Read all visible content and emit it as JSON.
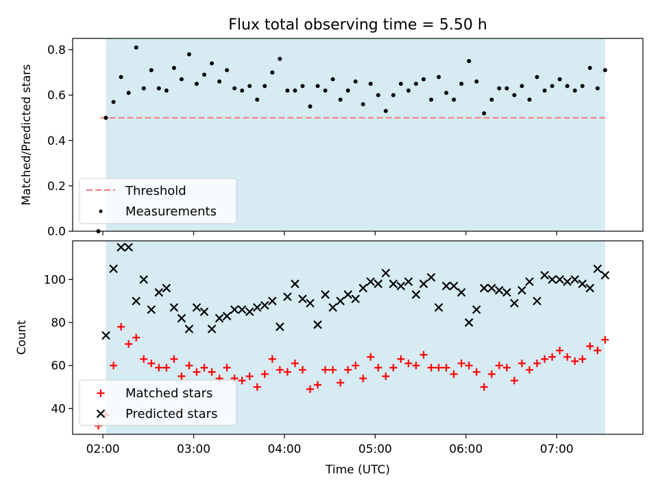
{
  "title": "Flux total observing time = 5.50 h",
  "colors": {
    "shade": "#add8e6",
    "threshold": "#f08080",
    "measurements": "#000000",
    "matched": "#ff0000",
    "predicted": "#000000"
  },
  "chart_data": [
    {
      "type": "scatter",
      "ylabel": "Matched/Predicted stars",
      "ylim": [
        0,
        0.85
      ],
      "yticks": [
        0.0,
        0.2,
        0.4,
        0.6,
        0.8
      ],
      "ytick_labels": [
        "0.0",
        "0.2",
        "0.4",
        "0.6",
        "0.8"
      ],
      "shaded_span": [
        "02:02",
        "07:32"
      ],
      "threshold_value": 0.5,
      "legend": {
        "position": "lower-left",
        "entries": [
          {
            "label": "Threshold",
            "marker": "dashed-line"
          },
          {
            "label": "Measurements",
            "marker": "dot"
          }
        ]
      },
      "series": [
        {
          "name": "Measurements",
          "x": [
            "01:57",
            "02:02",
            "02:07",
            "02:12",
            "02:17",
            "02:22",
            "02:27",
            "02:32",
            "02:37",
            "02:42",
            "02:47",
            "02:52",
            "02:57",
            "03:02",
            "03:07",
            "03:12",
            "03:17",
            "03:22",
            "03:27",
            "03:32",
            "03:37",
            "03:42",
            "03:47",
            "03:52",
            "03:57",
            "04:02",
            "04:07",
            "04:12",
            "04:17",
            "04:22",
            "04:27",
            "04:32",
            "04:37",
            "04:42",
            "04:47",
            "04:52",
            "04:57",
            "05:02",
            "05:07",
            "05:12",
            "05:17",
            "05:22",
            "05:27",
            "05:32",
            "05:37",
            "05:42",
            "05:47",
            "05:52",
            "05:57",
            "06:02",
            "06:07",
            "06:12",
            "06:17",
            "06:22",
            "06:27",
            "06:32",
            "06:37",
            "06:42",
            "06:47",
            "06:52",
            "06:57",
            "07:02",
            "07:07",
            "07:12",
            "07:17",
            "07:22",
            "07:27",
            "07:32"
          ],
          "y": [
            0.0,
            0.5,
            0.57,
            0.68,
            0.61,
            0.81,
            0.63,
            0.71,
            0.63,
            0.62,
            0.72,
            0.67,
            0.78,
            0.65,
            0.69,
            0.74,
            0.66,
            0.71,
            0.63,
            0.62,
            0.64,
            0.58,
            0.64,
            0.7,
            0.76,
            0.62,
            0.62,
            0.64,
            0.55,
            0.64,
            0.62,
            0.67,
            0.58,
            0.62,
            0.66,
            0.56,
            0.65,
            0.6,
            0.53,
            0.6,
            0.65,
            0.62,
            0.65,
            0.67,
            0.58,
            0.68,
            0.61,
            0.58,
            0.65,
            0.75,
            0.66,
            0.52,
            0.58,
            0.63,
            0.63,
            0.6,
            0.64,
            0.58,
            0.68,
            0.62,
            0.64,
            0.67,
            0.64,
            0.62,
            0.64,
            0.72,
            0.63,
            0.71
          ]
        }
      ]
    },
    {
      "type": "scatter",
      "xlabel": "Time (UTC)",
      "ylabel": "Count",
      "ylim": [
        28,
        118
      ],
      "yticks": [
        40,
        60,
        80,
        100
      ],
      "ytick_labels": [
        "40",
        "60",
        "80",
        "100"
      ],
      "xticks": [
        "02:00",
        "03:00",
        "04:00",
        "05:00",
        "06:00",
        "07:00"
      ],
      "xlim": [
        "01:40",
        "07:57"
      ],
      "shaded_span": [
        "02:02",
        "07:32"
      ],
      "legend": {
        "position": "lower-left",
        "entries": [
          {
            "label": "Matched stars",
            "marker": "plus"
          },
          {
            "label": "Predicted stars",
            "marker": "x"
          }
        ]
      },
      "series": [
        {
          "name": "Matched stars",
          "x": [
            "01:57",
            "02:02",
            "02:07",
            "02:12",
            "02:17",
            "02:22",
            "02:27",
            "02:32",
            "02:37",
            "02:42",
            "02:47",
            "02:52",
            "02:57",
            "03:02",
            "03:07",
            "03:12",
            "03:17",
            "03:22",
            "03:27",
            "03:32",
            "03:37",
            "03:42",
            "03:47",
            "03:52",
            "03:57",
            "04:02",
            "04:07",
            "04:12",
            "04:17",
            "04:22",
            "04:27",
            "04:32",
            "04:37",
            "04:42",
            "04:47",
            "04:52",
            "04:57",
            "05:02",
            "05:07",
            "05:12",
            "05:17",
            "05:22",
            "05:27",
            "05:32",
            "05:37",
            "05:42",
            "05:47",
            "05:52",
            "05:57",
            "06:02",
            "06:07",
            "06:12",
            "06:17",
            "06:22",
            "06:27",
            "06:32",
            "06:37",
            "06:42",
            "06:47",
            "06:52",
            "06:57",
            "07:02",
            "07:07",
            "07:12",
            "07:17",
            "07:22",
            "07:27",
            "07:32"
          ],
          "y": [
            32,
            37,
            60,
            78,
            70,
            73,
            63,
            61,
            59,
            59,
            63,
            55,
            60,
            57,
            59,
            57,
            54,
            59,
            54,
            53,
            55,
            50,
            56,
            63,
            58,
            57,
            61,
            58,
            49,
            51,
            58,
            58,
            52,
            58,
            60,
            54,
            64,
            59,
            55,
            59,
            63,
            61,
            60,
            65,
            59,
            59,
            59,
            56,
            61,
            60,
            57,
            50,
            56,
            60,
            59,
            53,
            61,
            58,
            61,
            63,
            64,
            67,
            64,
            62,
            63,
            69,
            67,
            72
          ]
        },
        {
          "name": "Predicted stars",
          "x": [
            "02:02",
            "02:07",
            "02:12",
            "02:17",
            "02:22",
            "02:27",
            "02:32",
            "02:37",
            "02:42",
            "02:47",
            "02:52",
            "02:57",
            "03:02",
            "03:07",
            "03:12",
            "03:17",
            "03:22",
            "03:27",
            "03:32",
            "03:37",
            "03:42",
            "03:47",
            "03:52",
            "03:57",
            "04:02",
            "04:07",
            "04:12",
            "04:17",
            "04:22",
            "04:27",
            "04:32",
            "04:37",
            "04:42",
            "04:47",
            "04:52",
            "04:57",
            "05:02",
            "05:07",
            "05:12",
            "05:17",
            "05:22",
            "05:27",
            "05:32",
            "05:37",
            "05:42",
            "05:47",
            "05:52",
            "05:57",
            "06:02",
            "06:07",
            "06:12",
            "06:17",
            "06:22",
            "06:27",
            "06:32",
            "06:37",
            "06:42",
            "06:47",
            "06:52",
            "06:57",
            "07:02",
            "07:07",
            "07:12",
            "07:17",
            "07:22",
            "07:27",
            "07:32"
          ],
          "y": [
            74,
            105,
            115,
            115,
            90,
            100,
            86,
            94,
            96,
            87,
            82,
            77,
            87,
            85,
            77,
            82,
            83,
            86,
            86,
            85,
            87,
            88,
            90,
            78,
            92,
            98,
            91,
            89,
            79,
            93,
            87,
            90,
            93,
            91,
            96,
            99,
            98,
            103,
            98,
            97,
            99,
            93,
            98,
            101,
            87,
            97,
            97,
            94,
            80,
            86,
            96,
            96,
            95,
            94,
            89,
            95,
            99,
            90,
            102,
            100,
            100,
            99,
            100,
            98,
            96,
            105,
            102
          ]
        }
      ]
    }
  ]
}
